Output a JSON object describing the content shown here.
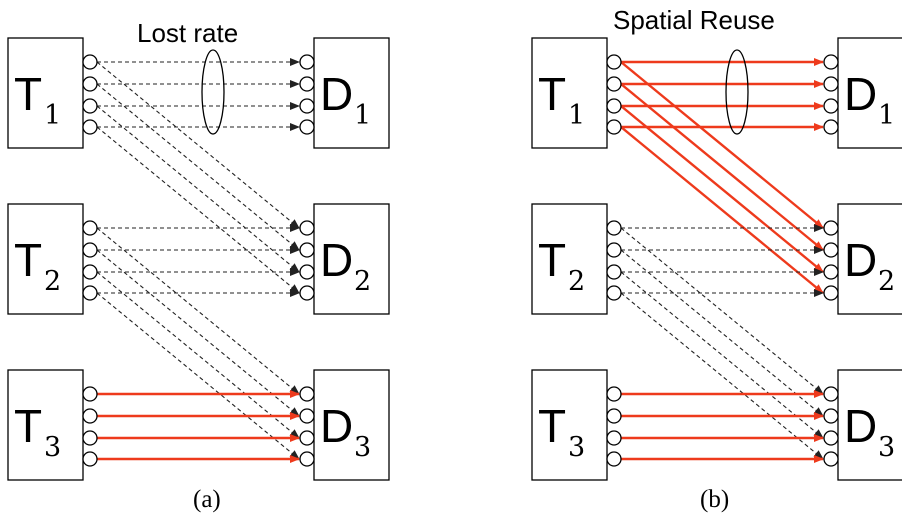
{
  "panels": [
    {
      "id": "a",
      "title": "Lost rate",
      "caption": "(a)",
      "transmitters": [
        {
          "letter": "T",
          "sub": "1"
        },
        {
          "letter": "T",
          "sub": "2"
        },
        {
          "letter": "T",
          "sub": "3"
        }
      ],
      "receivers": [
        {
          "letter": "D",
          "sub": "1"
        },
        {
          "letter": "D",
          "sub": "2"
        },
        {
          "letter": "D",
          "sub": "3"
        }
      ],
      "links": [
        {
          "from": 1,
          "to": 1,
          "style": "dashed"
        },
        {
          "from": 1,
          "to": 2,
          "style": "dashed"
        },
        {
          "from": 2,
          "to": 2,
          "style": "dashed"
        },
        {
          "from": 2,
          "to": 3,
          "style": "dashed"
        },
        {
          "from": 3,
          "to": 3,
          "style": "solid"
        }
      ]
    },
    {
      "id": "b",
      "title": "Spatial Reuse",
      "caption": "(b)",
      "transmitters": [
        {
          "letter": "T",
          "sub": "1"
        },
        {
          "letter": "T",
          "sub": "2"
        },
        {
          "letter": "T",
          "sub": "3"
        }
      ],
      "receivers": [
        {
          "letter": "D",
          "sub": "1"
        },
        {
          "letter": "D",
          "sub": "2"
        },
        {
          "letter": "D",
          "sub": "3"
        }
      ],
      "links": [
        {
          "from": 1,
          "to": 1,
          "style": "solid"
        },
        {
          "from": 1,
          "to": 2,
          "style": "solid"
        },
        {
          "from": 2,
          "to": 2,
          "style": "dashed"
        },
        {
          "from": 2,
          "to": 3,
          "style": "dashed"
        },
        {
          "from": 3,
          "to": 3,
          "style": "solid"
        }
      ]
    }
  ],
  "colors": {
    "solid_link": "#ee3a1c",
    "dashed_link": "#222222",
    "outline": "#000000"
  }
}
